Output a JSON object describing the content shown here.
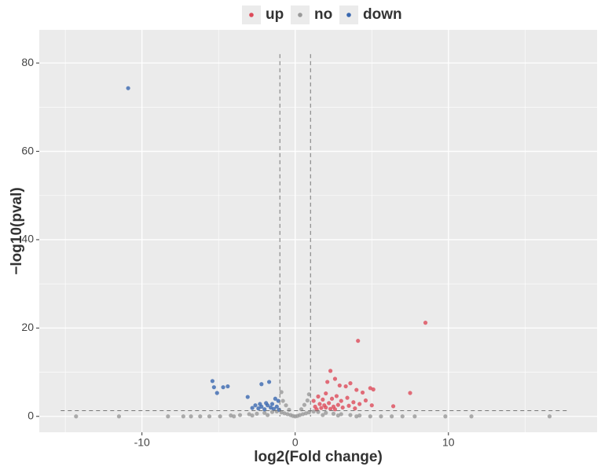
{
  "chart_data": {
    "type": "scatter",
    "x_label": "log2(Fold change)",
    "y_label": "−log10(pval)",
    "xlim": [
      -16.7,
      19.7
    ],
    "ylim": [
      -3.6,
      87.5
    ],
    "xticks": [
      -10,
      0,
      10
    ],
    "yticks": [
      0,
      20,
      40,
      60,
      80
    ],
    "xminor": [
      -15,
      -5,
      5,
      15
    ],
    "yminor": [
      10,
      30,
      50,
      70
    ],
    "grid": true,
    "legend": "top",
    "vlines": [
      -1,
      1
    ],
    "hline": 1.3,
    "series": [
      {
        "name": "up",
        "color": "#dd4b5a",
        "x": [
          8.5,
          4.1,
          7.5,
          2.3,
          2.6,
          2.9,
          3.3,
          3.6,
          4.0,
          4.4,
          4.9,
          5.1,
          2.1,
          1.5,
          1.8,
          2.0,
          2.4,
          2.7,
          3.0,
          3.4,
          3.8,
          4.2,
          4.6,
          5.0,
          1.3,
          1.6,
          1.9,
          2.2,
          2.5,
          2.8,
          3.1,
          3.5,
          3.9,
          1.2,
          1.4,
          1.7,
          2.0,
          2.3,
          2.6,
          6.4
        ],
        "values": [
          21.2,
          17.1,
          5.3,
          10.3,
          8.5,
          7.0,
          6.8,
          7.5,
          6.0,
          5.4,
          6.4,
          6.1,
          7.8,
          4.5,
          3.8,
          5.2,
          4.0,
          4.6,
          3.5,
          4.2,
          3.2,
          2.8,
          3.6,
          2.5,
          2.2,
          2.8,
          2.5,
          3.0,
          2.2,
          2.6,
          2.0,
          2.4,
          1.8,
          3.5,
          1.6,
          1.9,
          2.0,
          1.7,
          1.6,
          2.3
        ]
      },
      {
        "name": "no",
        "color": "#999999",
        "x": [
          -14.3,
          -11.5,
          -8.3,
          -7.3,
          -6.8,
          -6.2,
          -5.6,
          -4.9,
          -4.2,
          -3.6,
          -3.0,
          -2.5,
          -2.0,
          -1.5,
          -1.2,
          -0.9,
          -0.7,
          -0.5,
          -0.3,
          -0.15,
          0,
          0.15,
          0.3,
          0.5,
          0.7,
          0.9,
          1.2,
          1.5,
          2.0,
          2.5,
          3.0,
          3.6,
          4.2,
          4.9,
          5.6,
          6.3,
          7.0,
          7.8,
          9.8,
          11.5,
          16.6,
          -0.8,
          -0.6,
          -0.4,
          0.4,
          0.6,
          0.8,
          -0.9,
          0.9,
          -2.8,
          -1.8,
          1.8,
          2.8,
          -4.0,
          4.0
        ],
        "values": [
          0,
          0,
          0,
          0,
          0,
          0,
          0,
          0,
          0.2,
          0.3,
          0.5,
          0.6,
          0.8,
          1.0,
          1.1,
          0.9,
          0.7,
          0.5,
          0.3,
          0.1,
          0,
          0.1,
          0.3,
          0.5,
          0.7,
          0.9,
          1.1,
          1.0,
          0.8,
          0.6,
          0.5,
          0.3,
          0.2,
          0,
          0,
          0,
          0,
          0,
          0,
          0,
          0,
          3.5,
          2.5,
          1.5,
          1.6,
          2.6,
          3.6,
          5.5,
          5.0,
          0.2,
          0.3,
          0.3,
          0.2,
          0,
          0
        ]
      },
      {
        "name": "down",
        "color": "#3a68b0",
        "x": [
          -10.9,
          -5.4,
          -5.3,
          -5.1,
          -4.7,
          -4.4,
          -3.1,
          -2.2,
          -1.7,
          -2.6,
          -2.4,
          -2.2,
          -2.0,
          -1.8,
          -1.6,
          -1.4,
          -1.2,
          -1.1,
          -1.3,
          -2.8,
          -1.9,
          -1.5,
          -1.05,
          -2.3
        ],
        "values": [
          74.3,
          8.0,
          6.6,
          5.3,
          6.6,
          6.8,
          4.4,
          7.3,
          7.8,
          2.5,
          1.8,
          2.2,
          1.6,
          2.5,
          2.0,
          1.7,
          2.2,
          3.5,
          4.0,
          1.9,
          3.0,
          2.8,
          1.5,
          2.8
        ]
      }
    ]
  }
}
